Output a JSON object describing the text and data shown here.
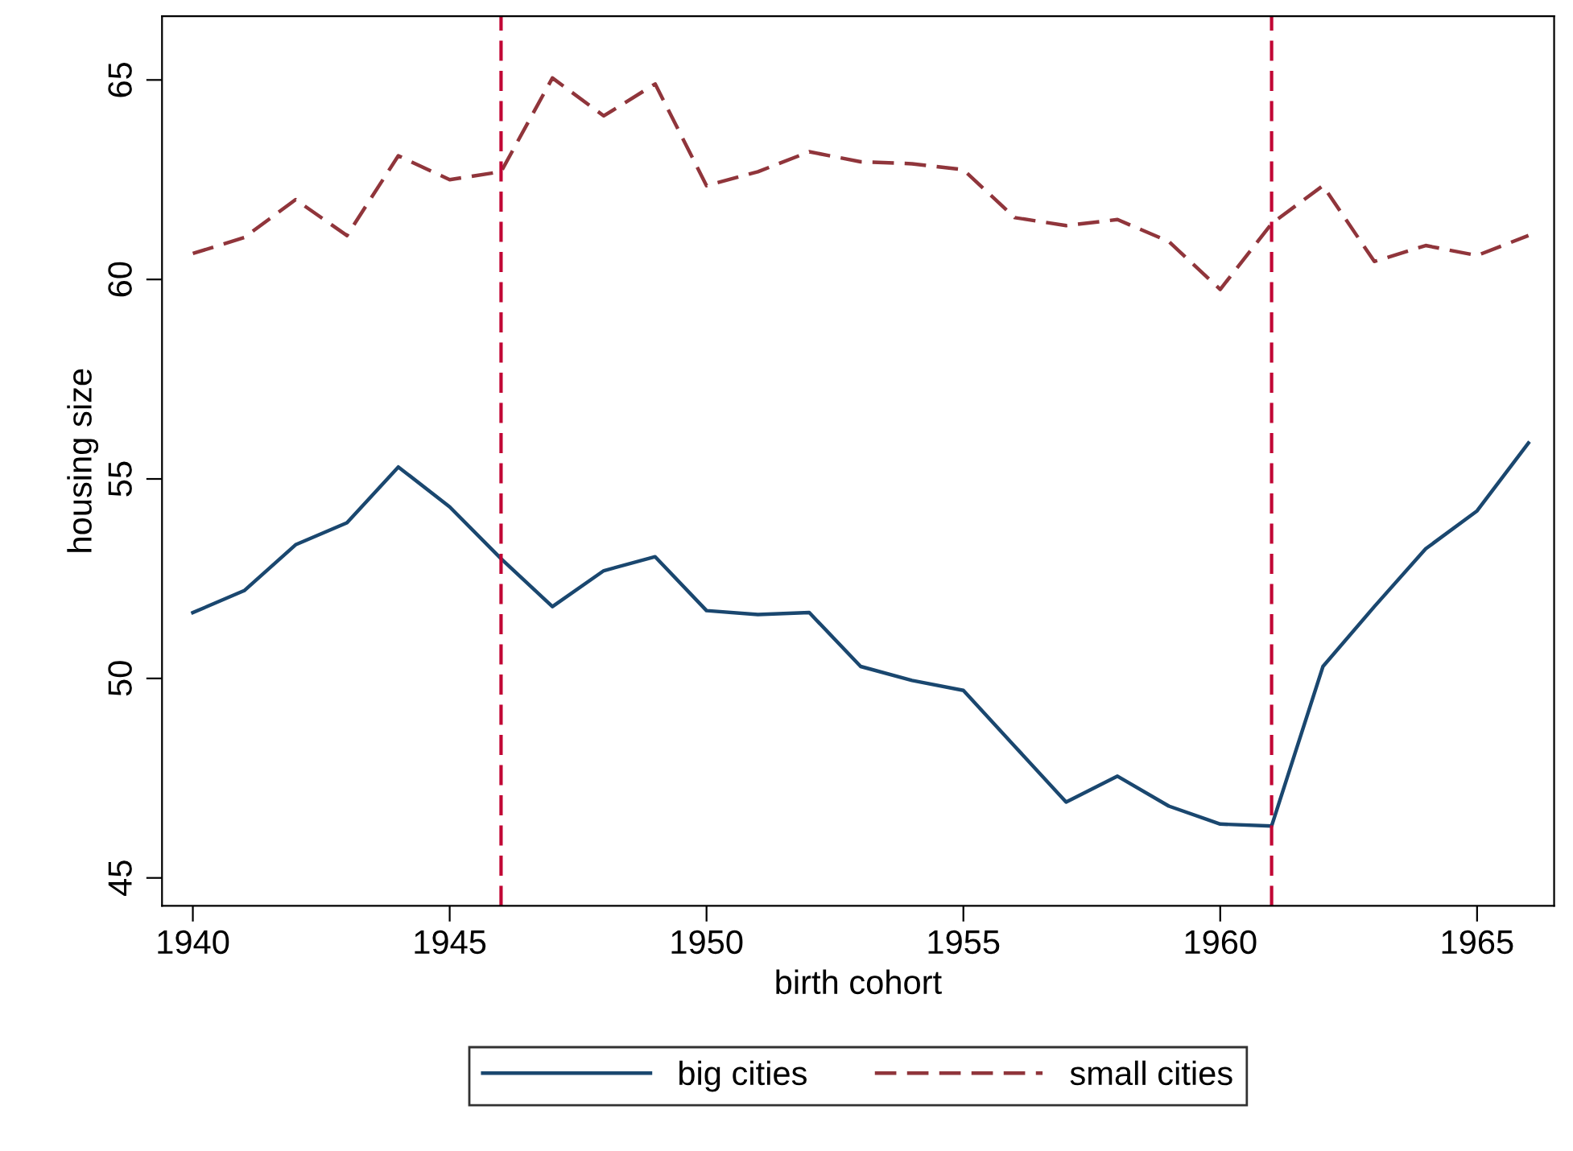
{
  "chart_data": {
    "type": "line",
    "xlabel": "birth cohort",
    "ylabel": "housing size",
    "x": [
      1940,
      1941,
      1942,
      1943,
      1944,
      1945,
      1946,
      1947,
      1948,
      1949,
      1950,
      1951,
      1952,
      1953,
      1954,
      1955,
      1956,
      1957,
      1958,
      1959,
      1960,
      1961,
      1962,
      1963,
      1964,
      1965,
      1966
    ],
    "series": [
      {
        "name": "big cities",
        "color": "#1a476f",
        "line_style": "solid",
        "values": [
          51.65,
          52.2,
          53.35,
          53.9,
          55.3,
          54.3,
          53.0,
          51.8,
          52.7,
          53.05,
          51.7,
          51.6,
          51.65,
          50.3,
          49.95,
          49.7,
          48.3,
          46.9,
          47.55,
          46.8,
          46.35,
          46.3,
          50.3,
          51.8,
          53.25,
          54.2,
          55.9
        ]
      },
      {
        "name": "small cities",
        "color": "#90353b",
        "line_style": "dashed",
        "values": [
          60.65,
          61.05,
          62.0,
          61.1,
          63.1,
          62.5,
          62.7,
          65.05,
          64.1,
          64.9,
          62.35,
          62.7,
          63.2,
          62.95,
          62.9,
          62.75,
          61.55,
          61.35,
          61.5,
          60.95,
          59.75,
          61.4,
          62.35,
          60.45,
          60.85,
          60.6,
          61.1
        ]
      }
    ],
    "xlim": [
      1939.4,
      1966.5
    ],
    "xticks": [
      1940,
      1945,
      1950,
      1955,
      1960,
      1965
    ],
    "ylim": [
      44.3,
      66.6
    ],
    "yticks": [
      45,
      50,
      55,
      60,
      65
    ],
    "ref_lines": [
      {
        "axis": "x",
        "value": 1946,
        "color": "#c10534",
        "line_style": "dashed"
      },
      {
        "axis": "x",
        "value": 1961,
        "color": "#c10534",
        "line_style": "dashed"
      }
    ],
    "grid": false,
    "legend": "bottom",
    "marker": "none"
  }
}
